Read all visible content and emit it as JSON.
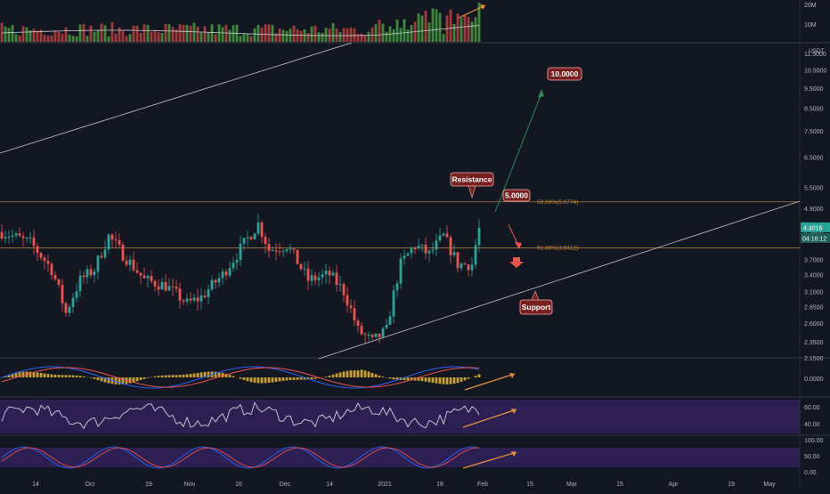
{
  "colors": {
    "background": "#131722",
    "bull": "#26a69a",
    "bear": "#ef5350",
    "vol_up": "#3f8a3a",
    "vol_down": "#a63a3a",
    "grid": "#1f2330",
    "axis_text": "#b2b5be",
    "fib": "#c98a3a",
    "annotation": "#e69138",
    "label_bg": "#7a1f1f",
    "label_border": "#f3b0b0",
    "price_badge": "#26a69a",
    "rsi_band": "#3b2466",
    "stoch_band": "#3b2466",
    "macd_hist": "#c9a227",
    "macd_line": "#2962ff",
    "signal_line": "#ef5350",
    "rsi_line": "#d1d4dc",
    "stoch_k": "#2962ff",
    "stoch_d": "#ef5350"
  },
  "chart_data": {
    "type": "candlestick",
    "quote_currency": "USDT",
    "x_axis_labels": [
      "14",
      "Oct",
      "19",
      "Nov",
      "16",
      "Dec",
      "14",
      "2021",
      "18",
      "Feb",
      "15",
      "Mar",
      "15",
      "Apr",
      "19",
      "May"
    ],
    "price_axis": {
      "scale": "log",
      "labels": [
        "11.5000",
        "10.5000",
        "9.5000",
        "8.5000",
        "7.5000",
        "6.5000",
        "5.5000",
        "4.9000",
        "4.3000",
        "3.7000",
        "3.4000",
        "3.1000",
        "2.8500",
        "2.6000",
        "2.3500",
        "2.1500"
      ],
      "current_price": "4.4016",
      "countdown": "04:16:12"
    },
    "volume_axis": {
      "labels": [
        "20M",
        "10M"
      ]
    },
    "candles_summary": {
      "period": "Sep 2020 – Feb 2021",
      "open_approx": 4.3,
      "range_low_approx": 2.2,
      "range_high_approx": 5.1,
      "last_close": 4.4016
    },
    "fib_levels": [
      {
        "label": "50.00%(5.0774)",
        "price": 5.0774
      },
      {
        "label": "61.80%(3.9412)",
        "price": 3.9412
      }
    ],
    "annotations": {
      "target_high": "10.0000",
      "target_mid": "5.0000",
      "resistance": "Resistance",
      "support": "Support"
    },
    "macd_axis": {
      "labels": [
        "0.0000"
      ]
    },
    "rsi_axis": {
      "labels": [
        "60.00",
        "40.00"
      ]
    },
    "stoch_axis": {
      "labels": [
        "100.00",
        "50.00",
        "0.00"
      ]
    }
  }
}
